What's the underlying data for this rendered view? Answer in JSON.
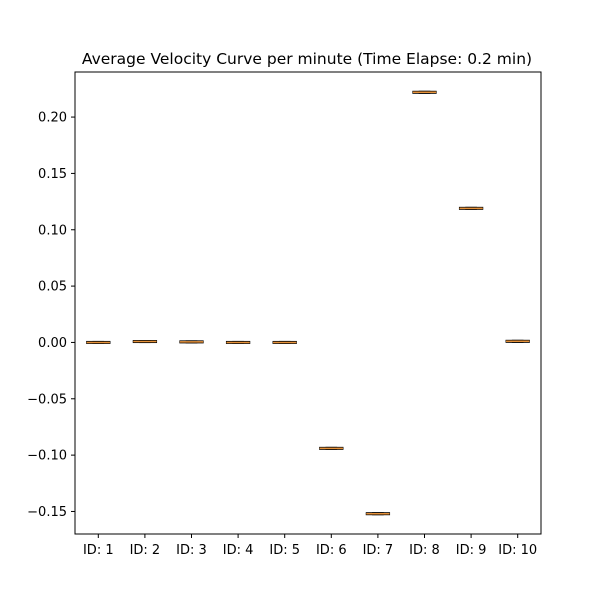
{
  "chart_data": {
    "type": "box",
    "title": "Average Velocity Curve per minute (Time Elapse: 0.2 min)",
    "xlabel": "",
    "ylabel": "",
    "categories": [
      "ID: 1",
      "ID: 2",
      "ID: 3",
      "ID: 4",
      "ID: 5",
      "ID: 6",
      "ID: 7",
      "ID: 8",
      "ID: 9",
      "ID: 10"
    ],
    "values": [
      0.0,
      0.0008,
      0.0005,
      0.0,
      0.0,
      -0.094,
      -0.152,
      0.222,
      0.119,
      0.001
    ],
    "ylim": [
      -0.17,
      0.24
    ],
    "yticks": [
      -0.15,
      -0.1,
      -0.05,
      0.0,
      0.05,
      0.1,
      0.15,
      0.2
    ],
    "ytick_labels": [
      "−0.15",
      "−0.10",
      "−0.05",
      "0.00",
      "0.05",
      "0.10",
      "0.15",
      "0.20"
    ],
    "grid": false,
    "colors": {
      "median": "#e69138",
      "box": "#000000",
      "axes": "#000000"
    }
  }
}
